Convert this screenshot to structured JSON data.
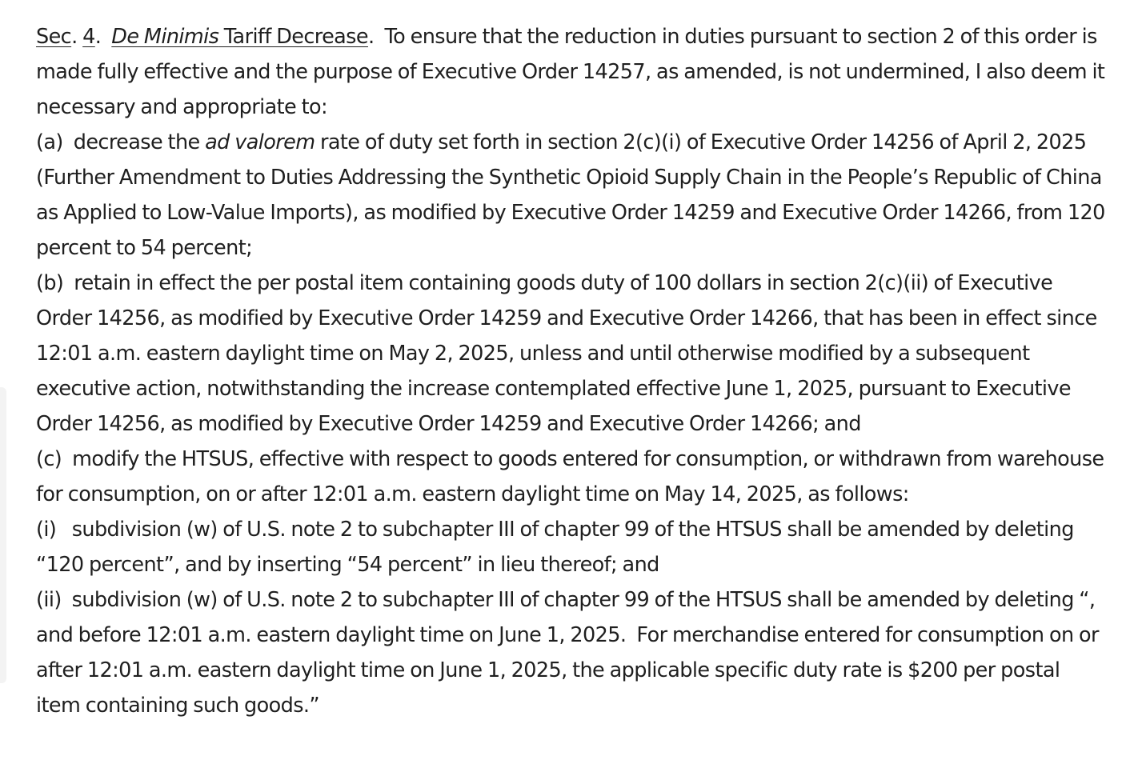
{
  "section": {
    "sec_label": "Sec",
    "sec_dot": ".",
    "sec_number": "4",
    "sec_number_dot": ".",
    "title_italic": "De Minimis",
    "title_rest": " Tariff Decrease",
    "title_dot": ".",
    "intro": "To ensure that the reduction in duties pursuant to section 2 of this order is made fully effective and the purpose of Executive Order 14257, as amended, is not undermined, I also deem it necessary and appropriate to:"
  },
  "paragraph_a": {
    "prefix": "(a)  decrease the ",
    "italic": "ad valorem",
    "rest": " rate of duty set forth in section 2(c)(i) of Executive Order 14256 of April 2, 2025 (Further Amendment to Duties Addressing the Synthetic Opioid Supply Chain in the People’s Republic of China as Applied to Low-Value Imports), as modified by Executive Order 14259 and Executive Order 14266, from 120 percent to 54 percent;"
  },
  "paragraph_b": {
    "text": "(b)  retain in effect the per postal item containing goods duty of 100 dollars in section 2(c)(ii) of Executive Order 14256, as modified by Executive Order 14259 and Executive Order 14266, that has been in effect since 12:01 a.m. eastern daylight time on May 2, 2025, unless and until otherwise modified by a subsequent executive action, notwithstanding the increase contemplated effective June 1, 2025, pursuant to Executive Order 14256, as modified by Executive Order 14259 and Executive Order 14266; and"
  },
  "paragraph_c": {
    "text": "(c)  modify the HTSUS, effective with respect to goods entered for consumption, or withdrawn from warehouse for consumption, on or after 12:01 a.m. eastern daylight time on May 14, 2025, as follows:"
  },
  "paragraph_c_i": {
    "text": "(i)   subdivision (w) of U.S. note 2 to subchapter III of chapter 99 of the HTSUS shall be amended by deleting “120 percent”, and by inserting “54 percent” in lieu thereof; and"
  },
  "paragraph_c_ii": {
    "text": "(ii)  subdivision (w) of U.S. note 2 to subchapter III of chapter 99 of the HTSUS shall be amended by deleting “, and before 12:01 a.m. eastern daylight time on June 1, 2025.  For merchandise entered for consumption on or after 12:01 a.m. eastern daylight time on June 1, 2025, the applicable specific duty rate is $200 per postal item containing such goods.”"
  }
}
